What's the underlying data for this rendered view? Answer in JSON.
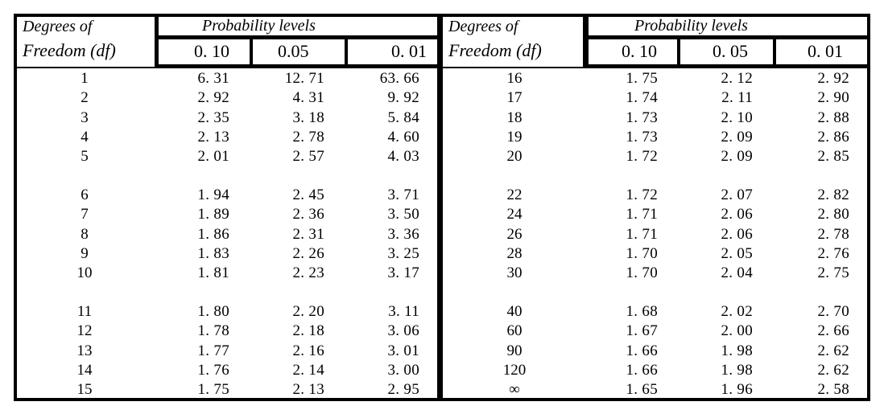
{
  "left": {
    "df_label_1": "Degrees of",
    "df_label_2": "Freedom (df)",
    "prob_label": "Probability levels",
    "levels": [
      "0. 10",
      "0.05",
      "0. 01"
    ],
    "groups": [
      [
        {
          "df": "1",
          "v": [
            "6. 31",
            "12. 71",
            "63. 66"
          ]
        },
        {
          "df": "2",
          "v": [
            "2. 92",
            "4. 31",
            "9. 92"
          ]
        },
        {
          "df": "3",
          "v": [
            "2. 35",
            "3. 18",
            "5. 84"
          ]
        },
        {
          "df": "4",
          "v": [
            "2. 13",
            "2. 78",
            "4. 60"
          ]
        },
        {
          "df": "5",
          "v": [
            "2. 01",
            "2. 57",
            "4. 03"
          ]
        }
      ],
      [
        {
          "df": "6",
          "v": [
            "1. 94",
            "2. 45",
            "3. 71"
          ]
        },
        {
          "df": "7",
          "v": [
            "1. 89",
            "2. 36",
            "3. 50"
          ]
        },
        {
          "df": "8",
          "v": [
            "1. 86",
            "2. 31",
            "3. 36"
          ]
        },
        {
          "df": "9",
          "v": [
            "1. 83",
            "2. 26",
            "3. 25"
          ]
        },
        {
          "df": "10",
          "v": [
            "1. 81",
            "2. 23",
            "3. 17"
          ]
        }
      ],
      [
        {
          "df": "11",
          "v": [
            "1. 80",
            "2. 20",
            "3. 11"
          ]
        },
        {
          "df": "12",
          "v": [
            "1. 78",
            "2. 18",
            "3. 06"
          ]
        },
        {
          "df": "13",
          "v": [
            "1. 77",
            "2. 16",
            "3. 01"
          ]
        },
        {
          "df": "14",
          "v": [
            "1. 76",
            "2. 14",
            "3. 00"
          ]
        },
        {
          "df": "15",
          "v": [
            "1. 75",
            "2. 13",
            "2. 95"
          ]
        }
      ]
    ]
  },
  "right": {
    "df_label_1": "Degrees of",
    "df_label_2": "Freedom (df)",
    "prob_label": "Probability levels",
    "levels": [
      "0. 10",
      "0. 05",
      "0. 01"
    ],
    "groups": [
      [
        {
          "df": "16",
          "v": [
            "1. 75",
            "2. 12",
            "2. 92"
          ]
        },
        {
          "df": "17",
          "v": [
            "1. 74",
            "2. 11",
            "2. 90"
          ]
        },
        {
          "df": "18",
          "v": [
            "1. 73",
            "2. 10",
            "2. 88"
          ]
        },
        {
          "df": "19",
          "v": [
            "1. 73",
            "2. 09",
            "2. 86"
          ]
        },
        {
          "df": "20",
          "v": [
            "1. 72",
            "2. 09",
            "2. 85"
          ]
        }
      ],
      [
        {
          "df": "22",
          "v": [
            "1. 72",
            "2. 07",
            "2. 82"
          ]
        },
        {
          "df": "24",
          "v": [
            "1. 71",
            "2. 06",
            "2. 80"
          ]
        },
        {
          "df": "26",
          "v": [
            "1. 71",
            "2. 06",
            "2. 78"
          ]
        },
        {
          "df": "28",
          "v": [
            "1. 70",
            "2. 05",
            "2. 76"
          ]
        },
        {
          "df": "30",
          "v": [
            "1. 70",
            "2. 04",
            "2. 75"
          ]
        }
      ],
      [
        {
          "df": "40",
          "v": [
            "1. 68",
            "2. 02",
            "2. 70"
          ]
        },
        {
          "df": "60",
          "v": [
            "1. 67",
            "2. 00",
            "2. 66"
          ]
        },
        {
          "df": "90",
          "v": [
            "1. 66",
            "1. 98",
            "2. 62"
          ]
        },
        {
          "df": "120",
          "v": [
            "1. 66",
            "1. 98",
            "2. 62"
          ]
        },
        {
          "df": "∞",
          "v": [
            "1. 65",
            "1. 96",
            "2. 58"
          ]
        }
      ]
    ]
  }
}
